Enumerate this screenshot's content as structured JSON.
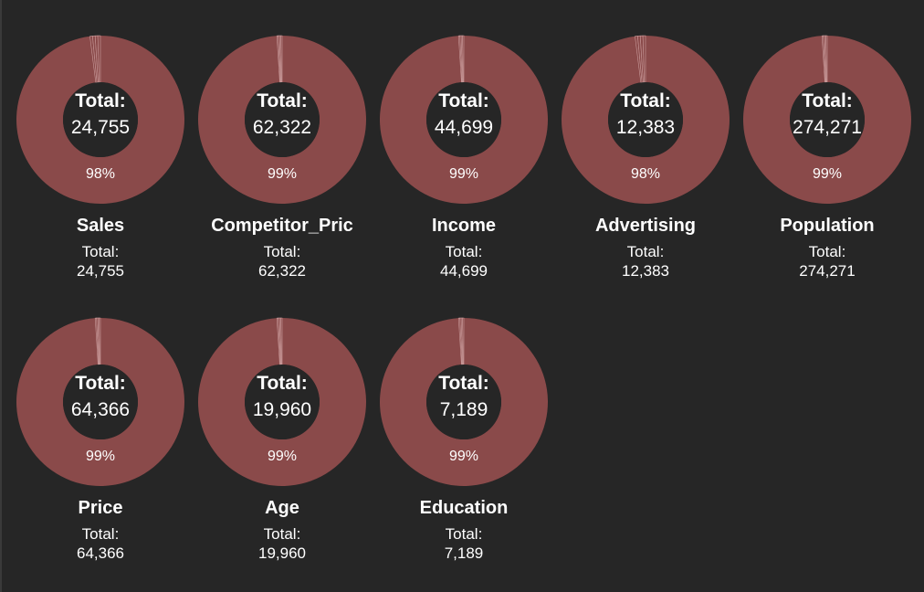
{
  "colors": {
    "background": "#262626",
    "slice_main": "#8a4a4a",
    "slice_edge": "#c99a9a",
    "hole": "#262626",
    "text": "#ffffff"
  },
  "chart_data": [
    {
      "type": "pie",
      "title": "Sales",
      "center_label": "Total:",
      "total": "24,755",
      "subtitle_label": "Total:",
      "subtitle_value": "24,755",
      "dominant_percent": 98,
      "percent_label": "98%"
    },
    {
      "type": "pie",
      "title": "Competitor_Pric",
      "center_label": "Total:",
      "total": "62,322",
      "subtitle_label": "Total:",
      "subtitle_value": "62,322",
      "dominant_percent": 99,
      "percent_label": "99%"
    },
    {
      "type": "pie",
      "title": "Income",
      "center_label": "Total:",
      "total": "44,699",
      "subtitle_label": "Total:",
      "subtitle_value": "44,699",
      "dominant_percent": 99,
      "percent_label": "99%"
    },
    {
      "type": "pie",
      "title": "Advertising",
      "center_label": "Total:",
      "total": "12,383",
      "subtitle_label": "Total:",
      "subtitle_value": "12,383",
      "dominant_percent": 98,
      "percent_label": "98%"
    },
    {
      "type": "pie",
      "title": "Population",
      "center_label": "Total:",
      "total": "274,271",
      "subtitle_label": "Total:",
      "subtitle_value": "274,271",
      "dominant_percent": 99,
      "percent_label": "99%"
    },
    {
      "type": "pie",
      "title": "Price",
      "center_label": "Total:",
      "total": "64,366",
      "subtitle_label": "Total:",
      "subtitle_value": "64,366",
      "dominant_percent": 99,
      "percent_label": "99%"
    },
    {
      "type": "pie",
      "title": "Age",
      "center_label": "Total:",
      "total": "19,960",
      "subtitle_label": "Total:",
      "subtitle_value": "19,960",
      "dominant_percent": 99,
      "percent_label": "99%"
    },
    {
      "type": "pie",
      "title": "Education",
      "center_label": "Total:",
      "total": "7,189",
      "subtitle_label": "Total:",
      "subtitle_value": "7,189",
      "dominant_percent": 99,
      "percent_label": "99%"
    }
  ]
}
